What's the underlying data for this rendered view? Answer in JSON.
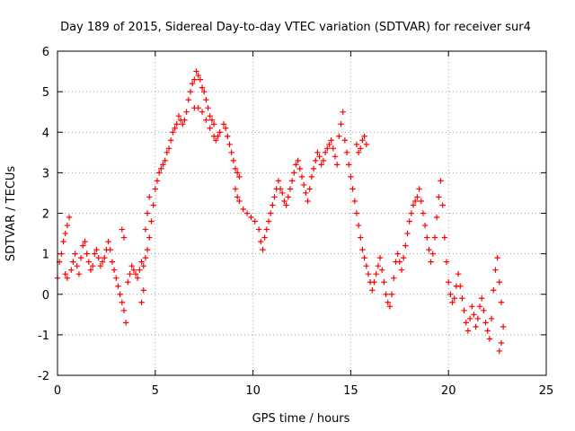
{
  "chart_data": {
    "type": "scatter",
    "title": "Day 189 of 2015, Sidereal Day-to-day VTEC variation (SDTVAR) for receiver sur4",
    "xlabel": "GPS time / hours",
    "ylabel": "SDTVAR / TECUs",
    "xlim": [
      0,
      25
    ],
    "ylim": [
      -2,
      6
    ],
    "grid": true,
    "x_ticks": [
      "0",
      "5",
      "10",
      "15",
      "20",
      "25"
    ],
    "y_ticks": [
      "-2",
      "-1",
      "0",
      "1",
      "2",
      "3",
      "4",
      "5",
      "6"
    ],
    "marker": "+",
    "series": [
      {
        "name": "SDTVAR",
        "color": "#ff0000",
        "points": [
          [
            0.0,
            0.4
          ],
          [
            0.1,
            0.8
          ],
          [
            0.2,
            1.0
          ],
          [
            0.3,
            1.3
          ],
          [
            0.4,
            1.5
          ],
          [
            0.5,
            1.7
          ],
          [
            0.6,
            1.9
          ],
          [
            0.4,
            0.5
          ],
          [
            0.5,
            0.4
          ],
          [
            0.7,
            0.6
          ],
          [
            0.8,
            0.8
          ],
          [
            0.9,
            1.0
          ],
          [
            1.0,
            0.7
          ],
          [
            1.1,
            0.5
          ],
          [
            1.2,
            0.9
          ],
          [
            1.3,
            1.2
          ],
          [
            1.4,
            1.3
          ],
          [
            1.5,
            1.0
          ],
          [
            1.6,
            0.8
          ],
          [
            1.7,
            0.6
          ],
          [
            1.8,
            0.7
          ],
          [
            1.9,
            1.0
          ],
          [
            2.0,
            1.1
          ],
          [
            2.1,
            0.9
          ],
          [
            2.2,
            0.7
          ],
          [
            2.3,
            0.8
          ],
          [
            2.4,
            0.9
          ],
          [
            2.5,
            1.1
          ],
          [
            2.6,
            1.3
          ],
          [
            2.7,
            1.1
          ],
          [
            2.8,
            0.8
          ],
          [
            2.9,
            0.6
          ],
          [
            3.0,
            0.4
          ],
          [
            3.1,
            0.2
          ],
          [
            3.2,
            0.0
          ],
          [
            3.3,
            -0.2
          ],
          [
            3.4,
            -0.4
          ],
          [
            3.5,
            -0.7
          ],
          [
            3.4,
            1.4
          ],
          [
            3.3,
            1.6
          ],
          [
            3.6,
            0.3
          ],
          [
            3.7,
            0.5
          ],
          [
            3.8,
            0.7
          ],
          [
            3.9,
            0.6
          ],
          [
            4.0,
            0.5
          ],
          [
            4.1,
            0.4
          ],
          [
            4.2,
            0.6
          ],
          [
            4.3,
            0.8
          ],
          [
            4.4,
            0.7
          ],
          [
            4.5,
            0.9
          ],
          [
            4.6,
            1.1
          ],
          [
            4.7,
            1.4
          ],
          [
            4.8,
            1.8
          ],
          [
            4.9,
            2.2
          ],
          [
            5.0,
            2.6
          ],
          [
            4.3,
            -0.2
          ],
          [
            4.4,
            0.1
          ],
          [
            4.5,
            1.6
          ],
          [
            4.6,
            2.0
          ],
          [
            4.7,
            2.4
          ],
          [
            5.1,
            2.8
          ],
          [
            5.2,
            3.0
          ],
          [
            5.3,
            3.1
          ],
          [
            5.4,
            3.2
          ],
          [
            5.5,
            3.3
          ],
          [
            5.6,
            3.5
          ],
          [
            5.7,
            3.6
          ],
          [
            5.8,
            3.8
          ],
          [
            5.9,
            4.0
          ],
          [
            6.0,
            4.1
          ],
          [
            6.1,
            4.2
          ],
          [
            6.2,
            4.4
          ],
          [
            6.3,
            4.3
          ],
          [
            6.4,
            4.2
          ],
          [
            6.5,
            4.3
          ],
          [
            6.6,
            4.5
          ],
          [
            6.7,
            4.8
          ],
          [
            6.8,
            5.0
          ],
          [
            6.9,
            5.2
          ],
          [
            7.0,
            5.3
          ],
          [
            7.1,
            5.5
          ],
          [
            7.2,
            5.4
          ],
          [
            7.3,
            5.3
          ],
          [
            7.4,
            5.1
          ],
          [
            7.5,
            5.0
          ],
          [
            7.6,
            4.8
          ],
          [
            7.7,
            4.6
          ],
          [
            7.8,
            4.4
          ],
          [
            7.9,
            4.3
          ],
          [
            8.0,
            4.2
          ],
          [
            7.0,
            4.6
          ],
          [
            7.2,
            4.6
          ],
          [
            7.4,
            4.5
          ],
          [
            7.6,
            4.3
          ],
          [
            7.8,
            4.1
          ],
          [
            8.0,
            3.9
          ],
          [
            8.1,
            3.8
          ],
          [
            8.2,
            3.9
          ],
          [
            8.3,
            4.0
          ],
          [
            8.5,
            4.2
          ],
          [
            8.6,
            4.1
          ],
          [
            8.7,
            3.9
          ],
          [
            8.8,
            3.7
          ],
          [
            8.9,
            3.5
          ],
          [
            9.0,
            3.3
          ],
          [
            9.1,
            3.1
          ],
          [
            9.2,
            3.0
          ],
          [
            9.3,
            2.9
          ],
          [
            9.1,
            2.6
          ],
          [
            9.2,
            2.4
          ],
          [
            9.3,
            2.3
          ],
          [
            9.5,
            2.1
          ],
          [
            9.7,
            2.0
          ],
          [
            9.9,
            1.9
          ],
          [
            10.1,
            1.8
          ],
          [
            10.3,
            1.6
          ],
          [
            10.4,
            1.3
          ],
          [
            10.5,
            1.1
          ],
          [
            10.6,
            1.4
          ],
          [
            10.7,
            1.6
          ],
          [
            10.8,
            1.8
          ],
          [
            10.9,
            2.0
          ],
          [
            11.0,
            2.2
          ],
          [
            11.1,
            2.4
          ],
          [
            11.2,
            2.6
          ],
          [
            11.3,
            2.8
          ],
          [
            11.4,
            2.6
          ],
          [
            11.5,
            2.5
          ],
          [
            11.6,
            2.3
          ],
          [
            11.7,
            2.2
          ],
          [
            11.8,
            2.4
          ],
          [
            11.9,
            2.6
          ],
          [
            12.0,
            2.8
          ],
          [
            12.1,
            3.0
          ],
          [
            12.2,
            3.2
          ],
          [
            12.3,
            3.3
          ],
          [
            12.4,
            3.1
          ],
          [
            12.5,
            2.9
          ],
          [
            12.6,
            2.7
          ],
          [
            12.7,
            2.5
          ],
          [
            12.8,
            2.3
          ],
          [
            12.9,
            2.6
          ],
          [
            13.0,
            2.9
          ],
          [
            13.1,
            3.1
          ],
          [
            13.2,
            3.3
          ],
          [
            13.3,
            3.5
          ],
          [
            13.4,
            3.4
          ],
          [
            13.5,
            3.2
          ],
          [
            13.6,
            3.3
          ],
          [
            13.7,
            3.5
          ],
          [
            13.8,
            3.6
          ],
          [
            13.9,
            3.7
          ],
          [
            14.0,
            3.8
          ],
          [
            14.1,
            3.6
          ],
          [
            14.2,
            3.4
          ],
          [
            14.3,
            3.2
          ],
          [
            14.4,
            3.9
          ],
          [
            14.5,
            4.2
          ],
          [
            14.6,
            4.5
          ],
          [
            14.7,
            3.8
          ],
          [
            14.8,
            3.5
          ],
          [
            14.9,
            3.2
          ],
          [
            15.0,
            2.9
          ],
          [
            15.1,
            2.6
          ],
          [
            15.2,
            2.3
          ],
          [
            15.3,
            2.0
          ],
          [
            15.4,
            1.7
          ],
          [
            15.5,
            1.4
          ],
          [
            15.6,
            1.1
          ],
          [
            15.7,
            0.9
          ],
          [
            15.8,
            0.7
          ],
          [
            15.9,
            0.5
          ],
          [
            16.0,
            0.3
          ],
          [
            16.1,
            0.1
          ],
          [
            16.2,
            0.3
          ],
          [
            16.3,
            0.5
          ],
          [
            16.4,
            0.7
          ],
          [
            16.5,
            0.9
          ],
          [
            16.6,
            0.6
          ],
          [
            16.7,
            0.3
          ],
          [
            16.8,
            0.0
          ],
          [
            16.9,
            -0.2
          ],
          [
            17.0,
            -0.3
          ],
          [
            17.1,
            0.0
          ],
          [
            17.2,
            0.4
          ],
          [
            17.3,
            0.8
          ],
          [
            17.4,
            1.0
          ],
          [
            17.5,
            0.8
          ],
          [
            17.6,
            0.6
          ],
          [
            17.7,
            0.9
          ],
          [
            17.8,
            1.2
          ],
          [
            17.9,
            1.5
          ],
          [
            18.0,
            1.8
          ],
          [
            18.1,
            2.0
          ],
          [
            18.2,
            2.2
          ],
          [
            18.3,
            2.3
          ],
          [
            18.4,
            2.4
          ],
          [
            18.5,
            2.6
          ],
          [
            18.6,
            2.3
          ],
          [
            18.7,
            2.0
          ],
          [
            18.8,
            1.7
          ],
          [
            18.9,
            1.4
          ],
          [
            19.0,
            1.1
          ],
          [
            19.1,
            0.8
          ],
          [
            19.2,
            1.0
          ],
          [
            19.3,
            1.4
          ],
          [
            19.4,
            1.9
          ],
          [
            19.5,
            2.4
          ],
          [
            19.6,
            2.8
          ],
          [
            19.7,
            2.2
          ],
          [
            19.8,
            1.4
          ],
          [
            19.9,
            0.8
          ],
          [
            20.0,
            0.3
          ],
          [
            20.1,
            0.0
          ],
          [
            20.2,
            -0.2
          ],
          [
            20.3,
            -0.1
          ],
          [
            20.4,
            0.2
          ],
          [
            20.5,
            0.5
          ],
          [
            20.6,
            0.2
          ],
          [
            20.7,
            -0.1
          ],
          [
            20.8,
            -0.4
          ],
          [
            20.9,
            -0.7
          ],
          [
            21.0,
            -0.9
          ],
          [
            21.1,
            -0.6
          ],
          [
            21.2,
            -0.3
          ],
          [
            21.3,
            -0.5
          ],
          [
            21.4,
            -0.8
          ],
          [
            21.5,
            -0.6
          ],
          [
            21.6,
            -0.3
          ],
          [
            21.7,
            -0.1
          ],
          [
            21.8,
            -0.4
          ],
          [
            21.9,
            -0.7
          ],
          [
            22.0,
            -0.9
          ],
          [
            22.1,
            -1.1
          ],
          [
            22.2,
            -0.6
          ],
          [
            22.3,
            0.1
          ],
          [
            22.4,
            0.6
          ],
          [
            22.5,
            0.9
          ],
          [
            22.6,
            0.3
          ],
          [
            22.7,
            -0.2
          ],
          [
            22.8,
            -0.8
          ],
          [
            22.7,
            -1.2
          ],
          [
            22.6,
            -1.4
          ],
          [
            15.3,
            3.7
          ],
          [
            15.4,
            3.5
          ],
          [
            15.5,
            3.6
          ],
          [
            15.6,
            3.8
          ],
          [
            15.7,
            3.9
          ],
          [
            15.8,
            3.7
          ]
        ]
      }
    ]
  }
}
